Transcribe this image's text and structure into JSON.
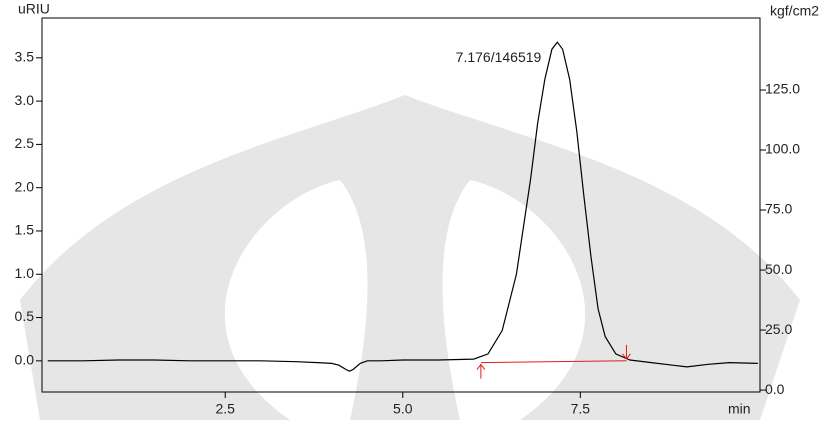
{
  "chart_data": {
    "type": "line",
    "y_label": "uRIU",
    "y2_label": "kgf/cm2",
    "x_label": "min",
    "annotation": {
      "text": "7.176/146519",
      "x": 7.176
    },
    "xlim": [
      -0.08,
      10.03
    ],
    "ylim": [
      -0.36,
      3.96
    ],
    "y2lim": [
      -0.8,
      155
    ],
    "xticks": [
      2.5,
      {
        "value": 5,
        "label": "5.0"
      },
      7.5
    ],
    "yticks": [
      {
        "value": 0,
        "label": "0.0"
      },
      0.5,
      {
        "value": 1,
        "label": "1.0"
      },
      1.5,
      {
        "value": 2,
        "label": "2.0"
      },
      2.5,
      {
        "value": 3,
        "label": "3.0"
      },
      3.5
    ],
    "y2ticks": [
      {
        "value": 0,
        "label": "0.0"
      },
      {
        "value": 25,
        "label": "25.0"
      },
      {
        "value": 50,
        "label": "50.0"
      },
      {
        "value": 75,
        "label": "75.0"
      },
      {
        "value": 100,
        "label": "100.0"
      },
      {
        "value": 125,
        "label": "125.0"
      }
    ],
    "series": [
      {
        "color": "#000000",
        "x": [
          0,
          0.5,
          1,
          1.5,
          2,
          2.5,
          3,
          3.5,
          3.8,
          4.0,
          4.1,
          4.2,
          4.25,
          4.3,
          4.4,
          4.5,
          4.7,
          5.0,
          5.5,
          6.0,
          6.2,
          6.4,
          6.6,
          6.8,
          6.9,
          7.0,
          7.1,
          7.176,
          7.25,
          7.35,
          7.45,
          7.55,
          7.65,
          7.75,
          7.85,
          8.0,
          8.2,
          8.5,
          8.8,
          9.0,
          9.3,
          9.6,
          10.0
        ],
        "values": [
          0.0,
          0.0,
          0.01,
          0.01,
          0.0,
          0.0,
          0.0,
          -0.01,
          -0.02,
          -0.03,
          -0.05,
          -0.1,
          -0.12,
          -0.1,
          -0.03,
          0.0,
          0.0,
          0.01,
          0.01,
          0.02,
          0.08,
          0.35,
          1.0,
          2.1,
          2.75,
          3.25,
          3.6,
          3.68,
          3.6,
          3.25,
          2.65,
          1.9,
          1.2,
          0.6,
          0.28,
          0.08,
          0.01,
          -0.02,
          -0.05,
          -0.07,
          -0.04,
          -0.02,
          -0.03
        ]
      }
    ],
    "baseline": {
      "color": "#e0201c",
      "x": [
        6.1,
        8.15
      ],
      "values": [
        -0.02,
        0.0
      ]
    }
  }
}
